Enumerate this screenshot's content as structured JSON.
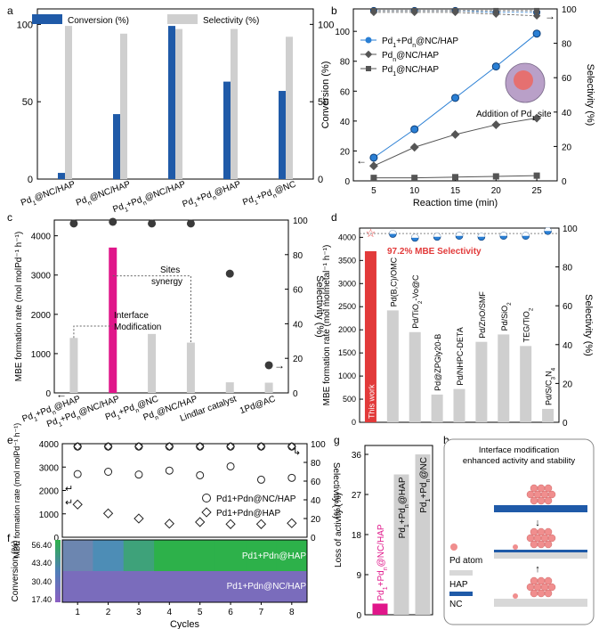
{
  "colors": {
    "blue": "#1f5aa8",
    "gray": "#cfcfcf",
    "magenta": "#e0168a",
    "red": "#e23a3a",
    "dark": "#444444"
  },
  "chart_data": [
    {
      "panel": "a",
      "type": "bar",
      "categories": [
        "Pd1@NC/HAP",
        "Pdn@NC/HAP",
        "Pd1+Pdn@NC/HAP",
        "Pd1+Pdn@HAP",
        "Pd1+Pdn@NC"
      ],
      "series": [
        {
          "name": "Conversion (%)",
          "values": [
            4,
            42,
            99,
            63,
            57
          ]
        },
        {
          "name": "Selectivity (%)",
          "values": [
            99,
            94,
            97,
            97,
            92
          ]
        }
      ],
      "ylim": [
        0,
        110
      ],
      "yticks": [
        0,
        50,
        100
      ],
      "xlabel": "",
      "ylabel": ""
    },
    {
      "panel": "b",
      "type": "line",
      "x": [
        5,
        10,
        15,
        20,
        25
      ],
      "xlabel": "Reaction time (min)",
      "ylabel": "Conversion (%)",
      "y2label": "Selectivity (%)",
      "ylim": [
        0,
        115
      ],
      "y2lim": [
        0,
        100
      ],
      "series": [
        {
          "name": "Pd1+Pdn@NC/HAP",
          "values": [
            15.5,
            34.5,
            55.5,
            76.5,
            98.5
          ],
          "selectivity": [
            99,
            99,
            99,
            98,
            98
          ]
        },
        {
          "name": "Pdn@NC/HAP",
          "values": [
            10,
            22.5,
            31,
            37.5,
            42
          ],
          "selectivity": [
            98,
            98,
            98,
            97,
            96
          ]
        },
        {
          "name": "Pd1@NC/HAP",
          "values": [
            2,
            2,
            2.5,
            3,
            3.5
          ],
          "selectivity": [
            99,
            99,
            99,
            99,
            99
          ]
        }
      ],
      "annotation": "Addition of Pd1 site"
    },
    {
      "panel": "c",
      "type": "bar",
      "categories": [
        "Pd1+Pdn@HAP",
        "Pd1+Pdn@NC/HAP",
        "Pd1+Pdn@NC",
        "Pdn@NC/HAP",
        "Lindlar catalyst",
        "1Pd@AC"
      ],
      "values": [
        1400,
        3700,
        1500,
        1280,
        270,
        260
      ],
      "selectivity": [
        98,
        99,
        98,
        98,
        69,
        16
      ],
      "ylabel": "MBE formation rate (mol molPd⁻¹ h⁻¹)",
      "y2label": "Selectivity (%)",
      "ylim": [
        0,
        4400
      ],
      "y2lim": [
        0,
        100
      ],
      "annotations": [
        "Sites synergy",
        "Interface Modification"
      ]
    },
    {
      "panel": "d",
      "type": "bar",
      "categories": [
        "This work",
        "Pd(B,C)/OMC",
        "Pd/TiO2-Vo@C",
        "Pd@ZPGly20-B",
        "Pd/NHPC-DETA",
        "Pd/ZnO/SMF",
        "Pd/SiO2",
        "TEG/TiO2",
        "Pd/S/C3N4"
      ],
      "values": [
        3700,
        2420,
        1950,
        600,
        720,
        1740,
        1900,
        1650,
        290
      ],
      "selectivity": [
        97.2,
        97,
        95,
        95.5,
        96,
        95.5,
        96,
        96,
        98.5
      ],
      "ylabel": "MBE formation rate (mol molmetal⁻¹ h⁻¹)",
      "y2label": "Selectivity (%)",
      "ylim": [
        0,
        4200
      ],
      "y2lim": [
        0,
        100
      ],
      "annotation": "97.2% MBE Selectivity"
    },
    {
      "panel": "e",
      "type": "scatter",
      "x": [
        1,
        2,
        3,
        4,
        5,
        6,
        7,
        8
      ],
      "series": [
        {
          "name": "Pd1+Pdn@NC/HAP",
          "values": [
            2700,
            2800,
            2680,
            2850,
            2650,
            3030,
            2460,
            2540
          ]
        },
        {
          "name": "Pd1+Pdn@HAP",
          "values": [
            1400,
            1020,
            800,
            580,
            650,
            560,
            560,
            600
          ]
        }
      ],
      "selectivity": [
        97,
        97,
        97,
        97,
        97,
        97,
        97,
        97
      ],
      "ylabel": "MBE formation rate (mol molPd⁻¹ h⁻¹)",
      "y2label": "Selectivity (%)",
      "ylim": [
        0,
        4000
      ],
      "y2lim": [
        0,
        100
      ]
    },
    {
      "panel": "f",
      "type": "heatmap",
      "x": [
        1,
        2,
        3,
        4,
        5,
        6,
        7,
        8
      ],
      "xlabel": "Cycles",
      "ylabel": "Conversion (%)",
      "colorbar_ticks": [
        "56.40",
        "43.40",
        "30.40",
        "17.40"
      ],
      "rows": [
        "Pd1+Pdn@HAP",
        "Pd1+Pdn@NC/HAP"
      ]
    },
    {
      "panel": "g",
      "type": "bar",
      "categories": [
        "Pd1+Pdn@NC/HAP",
        "Pd1+Pdn@HAP",
        "Pd1+Pdn@NC"
      ],
      "values": [
        2.5,
        31.5,
        36
      ],
      "ylabel": "Loss of activity (%)",
      "ylim": [
        0,
        38
      ],
      "yticks": [
        0,
        9,
        18,
        27,
        36
      ]
    }
  ],
  "panel_letters": {
    "a": "a",
    "b": "b",
    "c": "c",
    "d": "d",
    "e": "e",
    "f": "f",
    "g": "g",
    "h": "h"
  },
  "h_panel": {
    "title_line1": "Interface modification",
    "title_line2": "enhanced activity and stability",
    "legend_pd_atom": "Pd atom",
    "legend_hap": "HAP",
    "legend_nc": "NC"
  },
  "labels": {
    "a_legend_conv": "Conversion (%)",
    "a_legend_sel": "Selectivity (%)",
    "c_sites": "Sites",
    "c_synergy": "synergy",
    "c_interface": "Interface",
    "c_modification": "Modification",
    "e_legend1": "Pd1+Pdn@NC/HAP",
    "e_legend2": "Pd1+Pdn@HAP",
    "f_row1": "Pd1+Pdn@HAP",
    "f_row2": "Pd1+Pdn@NC/HAP"
  }
}
